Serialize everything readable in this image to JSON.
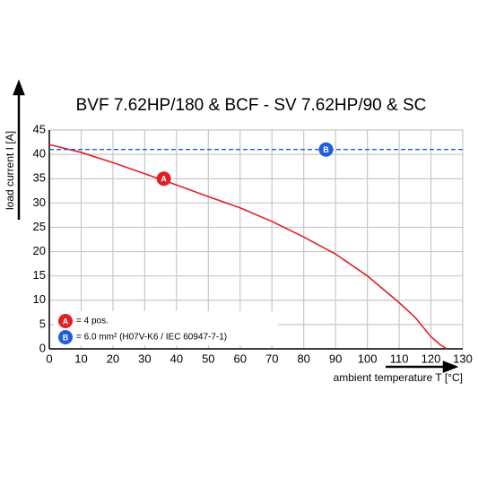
{
  "chart_data": {
    "type": "line",
    "title": "BVF 7.62HP/180 & BCF - SV 7.62HP/90 & SC",
    "x_label": "ambient temperature T [°C]",
    "y_label": "load current I [A]",
    "xlim": [
      0,
      130
    ],
    "xticks": [
      0,
      10,
      20,
      30,
      40,
      50,
      60,
      70,
      80,
      90,
      100,
      110,
      120,
      130
    ],
    "ylim": [
      0,
      45
    ],
    "yticks": [
      0,
      5,
      10,
      15,
      20,
      25,
      30,
      35,
      40,
      45
    ],
    "grid": true,
    "series": [
      {
        "name": "A",
        "description": "= 4 pos.",
        "color": "#e31e24",
        "style": "solid",
        "x": [
          0,
          10,
          20,
          30,
          40,
          50,
          60,
          70,
          80,
          90,
          100,
          110,
          115,
          120,
          123,
          125
        ],
        "values": [
          42,
          40.4,
          38.3,
          36,
          33.7,
          31.3,
          29,
          26.2,
          23,
          19.5,
          15,
          9.5,
          6.5,
          2.5,
          0.8,
          0
        ],
        "marker": {
          "x": 36,
          "y": 35
        }
      },
      {
        "name": "B",
        "description": "= 6.0 mm² (H07V-K6 / IEC 60947-7-1)",
        "color": "#1f5fd6",
        "style": "dashed",
        "x": [
          0,
          130
        ],
        "values": [
          41,
          41
        ],
        "marker": {
          "x": 87,
          "y": 41
        }
      }
    ]
  }
}
